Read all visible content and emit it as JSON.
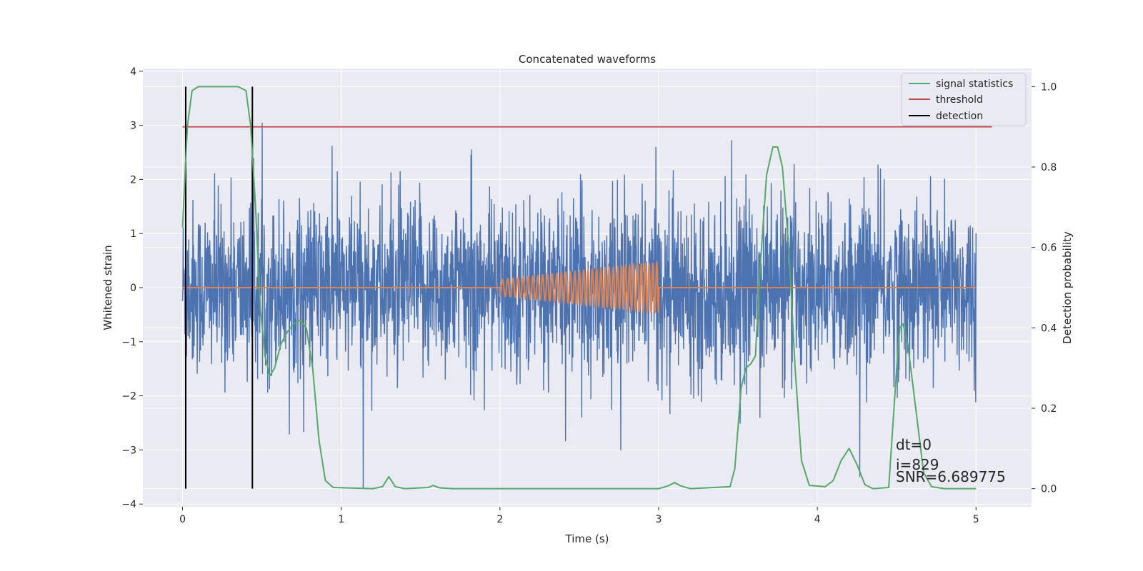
{
  "chart_data": {
    "type": "line",
    "title": "Concatenated waveforms",
    "xlabel": "Time (s)",
    "ylabel": "Whitened strain",
    "y2label": "Detection probability",
    "xlim": [
      -0.25,
      5.35
    ],
    "ylim": [
      -4.05,
      4.05
    ],
    "y2lim": [
      -0.045,
      1.045
    ],
    "x_ticks": [
      0,
      1,
      2,
      3,
      4,
      5
    ],
    "y_ticks": [
      -4,
      -3,
      -2,
      -1,
      0,
      1,
      2,
      3,
      4
    ],
    "y2_ticks": [
      0.0,
      0.2,
      0.4,
      0.6,
      0.8,
      1.0
    ],
    "x_tick_labels": [
      "0",
      "1",
      "2",
      "3",
      "4",
      "5"
    ],
    "y_tick_labels": [
      "−4",
      "−3",
      "−2",
      "−1",
      "0",
      "1",
      "2",
      "3",
      "4"
    ],
    "y2_tick_labels": [
      "0.0",
      "0.2",
      "0.4",
      "0.6",
      "0.8",
      "1.0"
    ],
    "grid": true,
    "legend_position": "top-right",
    "colors": {
      "strain": "#4c72b0",
      "injection": "#dd8452",
      "signal_statistics": "#55a868",
      "threshold": "#c44e52",
      "detection": "#000000",
      "background": "#eaeaf2",
      "grid": "#ffffff"
    },
    "series": [
      {
        "name": "",
        "role": "whitened strain (noise)",
        "x_range": [
          0,
          5
        ],
        "summary": "dense noise, amplitude mostly within [-2.5, 2.7], peaks up to 3.7"
      },
      {
        "name": "",
        "role": "injected chirp",
        "x_range": [
          2.0,
          3.0
        ],
        "amplitude_start": 0.15,
        "amplitude_end": 0.47,
        "baseline": 0
      },
      {
        "name": "signal statistics",
        "axis": "right",
        "points": [
          [
            0.0,
            0.65
          ],
          [
            0.03,
            0.9
          ],
          [
            0.06,
            0.99
          ],
          [
            0.1,
            1.0
          ],
          [
            0.35,
            1.0
          ],
          [
            0.4,
            0.99
          ],
          [
            0.43,
            0.9
          ],
          [
            0.46,
            0.7
          ],
          [
            0.49,
            0.45
          ],
          [
            0.52,
            0.33
          ],
          [
            0.55,
            0.28
          ],
          [
            0.58,
            0.3
          ],
          [
            0.62,
            0.36
          ],
          [
            0.66,
            0.39
          ],
          [
            0.7,
            0.41
          ],
          [
            0.74,
            0.42
          ],
          [
            0.78,
            0.4
          ],
          [
            0.82,
            0.3
          ],
          [
            0.86,
            0.12
          ],
          [
            0.9,
            0.02
          ],
          [
            0.95,
            0.003
          ],
          [
            1.2,
            0.0
          ],
          [
            1.26,
            0.005
          ],
          [
            1.3,
            0.03
          ],
          [
            1.34,
            0.005
          ],
          [
            1.4,
            0.0
          ],
          [
            1.55,
            0.003
          ],
          [
            1.58,
            0.008
          ],
          [
            1.62,
            0.002
          ],
          [
            1.7,
            0.0
          ],
          [
            3.0,
            0.0
          ],
          [
            3.06,
            0.007
          ],
          [
            3.1,
            0.015
          ],
          [
            3.14,
            0.007
          ],
          [
            3.2,
            0.0
          ],
          [
            3.45,
            0.005
          ],
          [
            3.48,
            0.05
          ],
          [
            3.52,
            0.25
          ],
          [
            3.55,
            0.3
          ],
          [
            3.58,
            0.31
          ],
          [
            3.61,
            0.33
          ],
          [
            3.64,
            0.55
          ],
          [
            3.68,
            0.78
          ],
          [
            3.72,
            0.85
          ],
          [
            3.75,
            0.85
          ],
          [
            3.78,
            0.8
          ],
          [
            3.82,
            0.6
          ],
          [
            3.86,
            0.3
          ],
          [
            3.9,
            0.07
          ],
          [
            3.95,
            0.008
          ],
          [
            4.05,
            0.005
          ],
          [
            4.1,
            0.02
          ],
          [
            4.15,
            0.07
          ],
          [
            4.2,
            0.1
          ],
          [
            4.25,
            0.06
          ],
          [
            4.3,
            0.01
          ],
          [
            4.35,
            0.0
          ],
          [
            4.45,
            0.003
          ],
          [
            4.5,
            0.3
          ],
          [
            4.52,
            0.4
          ],
          [
            4.54,
            0.41
          ],
          [
            4.57,
            0.36
          ],
          [
            4.62,
            0.2
          ],
          [
            4.67,
            0.04
          ],
          [
            4.72,
            0.005
          ],
          [
            4.8,
            0.0
          ],
          [
            5.0,
            0.0
          ]
        ]
      },
      {
        "name": "threshold",
        "axis": "right",
        "x": [
          0.0,
          5.1
        ],
        "y": [
          0.9,
          0.9
        ]
      },
      {
        "name": "detection",
        "axis": "right",
        "x_positions": [
          0.02,
          0.44
        ],
        "y_range": [
          0.0,
          1.0
        ]
      }
    ],
    "legend": [
      "signal statistics",
      "threshold",
      "detection"
    ],
    "annotations": [
      "dt=0",
      "i=829",
      "SNR=6.689775"
    ]
  }
}
